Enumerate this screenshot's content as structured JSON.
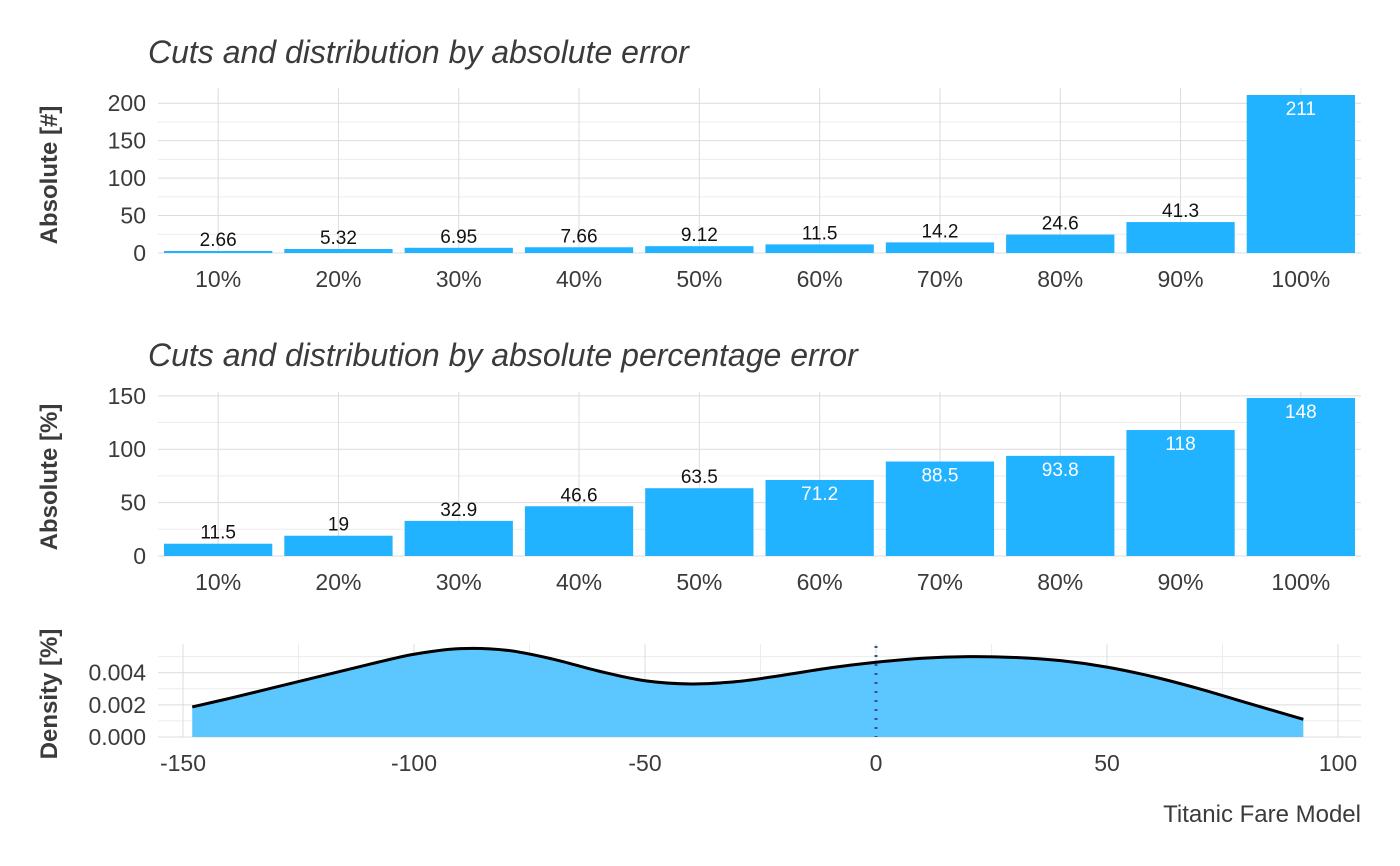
{
  "colors": {
    "bar": "#21b3ff",
    "density_fill": "#5cc6ff",
    "density_line": "#000000",
    "vline": "#3a4fa0"
  },
  "caption": "Titanic Fare Model",
  "chart_data": [
    {
      "type": "bar",
      "title": "Cuts and distribution by absolute error",
      "ylabel": "Absolute [#]",
      "categories": [
        "10%",
        "20%",
        "30%",
        "40%",
        "50%",
        "60%",
        "70%",
        "80%",
        "90%",
        "100%"
      ],
      "values": [
        2.66,
        5.32,
        6.95,
        7.66,
        9.12,
        11.5,
        14.2,
        24.6,
        41.3,
        211
      ],
      "labels": [
        "2.66",
        "5.32",
        "6.95",
        "7.66",
        "9.12",
        "11.5",
        "14.2",
        "24.6",
        "41.3",
        "211"
      ],
      "yticks": [
        0,
        50,
        100,
        150,
        200
      ],
      "ylim": [
        0,
        211
      ]
    },
    {
      "type": "bar",
      "title": "Cuts and distribution by absolute percentage error",
      "ylabel": "Absolute [%]",
      "categories": [
        "10%",
        "20%",
        "30%",
        "40%",
        "50%",
        "60%",
        "70%",
        "80%",
        "90%",
        "100%"
      ],
      "values": [
        11.5,
        19,
        32.9,
        46.6,
        63.5,
        71.2,
        88.5,
        93.8,
        118,
        148
      ],
      "labels": [
        "11.5",
        "19",
        "32.9",
        "46.6",
        "63.5",
        "71.2",
        "88.5",
        "93.8",
        "118",
        "148"
      ],
      "yticks": [
        0,
        50,
        100,
        150
      ],
      "ylim": [
        0,
        148
      ]
    },
    {
      "type": "area",
      "title": "",
      "ylabel": "Density [%]",
      "xticks": [
        -150,
        -100,
        -50,
        0,
        50,
        100
      ],
      "xtick_labels": [
        "-150",
        "-100",
        "-50",
        "0",
        "50",
        "100"
      ],
      "yticks": [
        0.0,
        0.002,
        0.004
      ],
      "ytick_labels": [
        "0.000",
        "0.002",
        "0.004"
      ],
      "xlim": [
        -152,
        102
      ],
      "ylim": [
        0,
        0.0056
      ],
      "vline_x": 0,
      "x": [
        -148,
        -140,
        -130,
        -120,
        -110,
        -100,
        -90,
        -80,
        -70,
        -60,
        -50,
        -40,
        -30,
        -20,
        -10,
        0,
        10,
        20,
        30,
        40,
        50,
        60,
        70,
        80,
        92.5
      ],
      "y": [
        0.00187,
        0.0024,
        0.0031,
        0.0038,
        0.0045,
        0.00515,
        0.0055,
        0.0054,
        0.00485,
        0.0041,
        0.0035,
        0.0033,
        0.00345,
        0.00385,
        0.0043,
        0.00465,
        0.0049,
        0.005,
        0.00495,
        0.00475,
        0.00435,
        0.00375,
        0.003,
        0.00215,
        0.0011
      ]
    }
  ]
}
